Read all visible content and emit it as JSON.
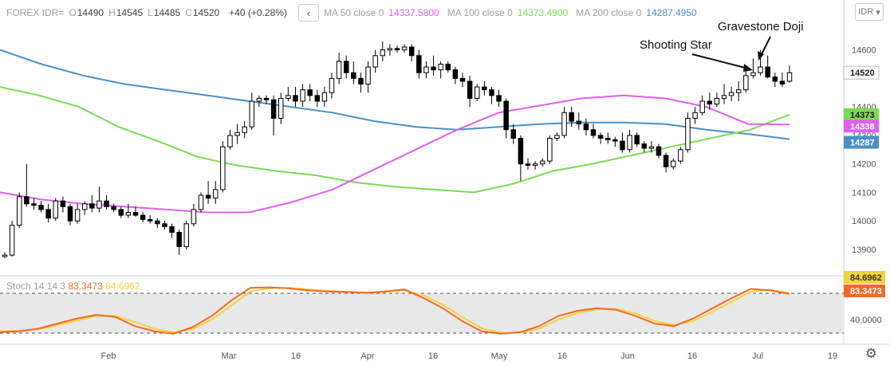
{
  "header": {
    "symbol": "FOREX IDR=",
    "ohlc": [
      {
        "k": "O",
        "v": "14490"
      },
      {
        "k": "H",
        "v": "14545"
      },
      {
        "k": "L",
        "v": "14485"
      },
      {
        "k": "C",
        "v": "14520"
      }
    ],
    "change": "+40 (+0.28%)",
    "collapse_icon": "chevron-left-icon",
    "ma": [
      {
        "label": "MA 50 close 0",
        "value": "14337.5800",
        "color": "#e05ff0"
      },
      {
        "label": "MA 100 close 0",
        "value": "14373.4900",
        "color": "#7ed957"
      },
      {
        "label": "MA 200 close 0",
        "value": "14287.4950",
        "color": "#4a90c8"
      }
    ],
    "currency_button": "IDR"
  },
  "stoch": {
    "label": "Stoch 14 14 3",
    "k_value": "83.3473",
    "d_value": "84.6962",
    "k_color": "#f06a2a",
    "d_color": "#f4d23c",
    "axis_labels": [
      "84.6962",
      "83.3473",
      "40.0000"
    ]
  },
  "annotations": {
    "shooting_star": "Shooting Star",
    "gravestone_doji": "Gravestone Doji"
  },
  "settings_icon": "gear-icon",
  "chart_data": {
    "type": "candlestick",
    "y_axis": {
      "range": [
        13830,
        14680
      ],
      "ticks": [
        13900,
        14000,
        14100,
        14200,
        14300,
        14400,
        14520,
        14600
      ]
    },
    "x_ticks": [
      "Feb",
      "Mar",
      "16",
      "Apr",
      "16",
      "May",
      "16",
      "Jun",
      "16",
      "Jul",
      "16",
      "19"
    ],
    "price_tags": [
      {
        "text": "14520",
        "color": "#ffffff",
        "textColor": "#222222"
      },
      {
        "text": "14373",
        "color": "#7ed957",
        "textColor": "#222222"
      },
      {
        "text": "14338",
        "color": "#e05ff0",
        "textColor": "#ffffff"
      },
      {
        "text": "14287",
        "color": "#4a90c8",
        "textColor": "#ffffff"
      }
    ],
    "candles": [
      [
        13875,
        13890,
        13870,
        13880
      ],
      [
        13880,
        14000,
        13875,
        13985
      ],
      [
        13985,
        14100,
        13975,
        14085
      ],
      [
        14085,
        14200,
        14050,
        14060
      ],
      [
        14060,
        14080,
        14040,
        14055
      ],
      [
        14055,
        14070,
        14030,
        14040
      ],
      [
        14040,
        14060,
        13995,
        14010
      ],
      [
        14010,
        14080,
        14000,
        14070
      ],
      [
        14070,
        14085,
        14030,
        14050
      ],
      [
        14050,
        14060,
        13985,
        14000
      ],
      [
        14000,
        14060,
        13990,
        14040
      ],
      [
        14040,
        14070,
        14020,
        14060
      ],
      [
        14060,
        14090,
        14030,
        14045
      ],
      [
        14045,
        14120,
        14030,
        14070
      ],
      [
        14070,
        14090,
        14040,
        14050
      ],
      [
        14050,
        14060,
        14030,
        14040
      ],
      [
        14040,
        14050,
        14010,
        14020
      ],
      [
        14020,
        14060,
        14010,
        14030
      ],
      [
        14030,
        14050,
        14015,
        14020
      ],
      [
        14020,
        14030,
        13995,
        14005
      ],
      [
        14005,
        14020,
        13990,
        14000
      ],
      [
        14000,
        14010,
        13975,
        13990
      ],
      [
        13990,
        14000,
        13970,
        13980
      ],
      [
        13980,
        13990,
        13940,
        13960
      ],
      [
        13960,
        13970,
        13880,
        13910
      ],
      [
        13910,
        14000,
        13900,
        13990
      ],
      [
        13990,
        14060,
        13980,
        14040
      ],
      [
        14040,
        14100,
        14030,
        14090
      ],
      [
        14090,
        14140,
        14060,
        14080
      ],
      [
        14080,
        14140,
        14060,
        14110
      ],
      [
        14110,
        14280,
        14100,
        14260
      ],
      [
        14260,
        14320,
        14250,
        14300
      ],
      [
        14300,
        14340,
        14270,
        14310
      ],
      [
        14310,
        14350,
        14290,
        14330
      ],
      [
        14330,
        14450,
        14320,
        14420
      ],
      [
        14420,
        14440,
        14400,
        14430
      ],
      [
        14430,
        14440,
        14410,
        14425
      ],
      [
        14425,
        14440,
        14300,
        14360
      ],
      [
        14360,
        14450,
        14340,
        14430
      ],
      [
        14430,
        14470,
        14420,
        14440
      ],
      [
        14440,
        14470,
        14400,
        14420
      ],
      [
        14420,
        14480,
        14400,
        14460
      ],
      [
        14460,
        14480,
        14420,
        14440
      ],
      [
        14440,
        14460,
        14400,
        14420
      ],
      [
        14420,
        14470,
        14400,
        14450
      ],
      [
        14450,
        14520,
        14430,
        14500
      ],
      [
        14500,
        14590,
        14480,
        14560
      ],
      [
        14560,
        14580,
        14500,
        14520
      ],
      [
        14520,
        14560,
        14480,
        14500
      ],
      [
        14500,
        14520,
        14450,
        14480
      ],
      [
        14480,
        14560,
        14450,
        14540
      ],
      [
        14540,
        14600,
        14520,
        14580
      ],
      [
        14580,
        14630,
        14560,
        14600
      ],
      [
        14600,
        14620,
        14580,
        14605
      ],
      [
        14605,
        14615,
        14590,
        14600
      ],
      [
        14600,
        14620,
        14590,
        14610
      ],
      [
        14610,
        14620,
        14560,
        14580
      ],
      [
        14580,
        14600,
        14500,
        14520
      ],
      [
        14520,
        14560,
        14500,
        14540
      ],
      [
        14540,
        14580,
        14510,
        14530
      ],
      [
        14530,
        14560,
        14500,
        14550
      ],
      [
        14550,
        14560,
        14520,
        14530
      ],
      [
        14530,
        14540,
        14480,
        14500
      ],
      [
        14500,
        14520,
        14470,
        14490
      ],
      [
        14490,
        14510,
        14400,
        14430
      ],
      [
        14430,
        14480,
        14420,
        14470
      ],
      [
        14470,
        14490,
        14440,
        14460
      ],
      [
        14460,
        14470,
        14410,
        14440
      ],
      [
        14440,
        14460,
        14400,
        14420
      ],
      [
        14420,
        14430,
        14290,
        14320
      ],
      [
        14320,
        14340,
        14270,
        14290
      ],
      [
        14290,
        14300,
        14140,
        14200
      ],
      [
        14200,
        14220,
        14180,
        14195
      ],
      [
        14195,
        14210,
        14180,
        14200
      ],
      [
        14200,
        14220,
        14190,
        14210
      ],
      [
        14210,
        14300,
        14200,
        14290
      ],
      [
        14290,
        14310,
        14280,
        14300
      ],
      [
        14300,
        14400,
        14290,
        14380
      ],
      [
        14380,
        14400,
        14330,
        14350
      ],
      [
        14350,
        14380,
        14320,
        14340
      ],
      [
        14340,
        14360,
        14300,
        14320
      ],
      [
        14320,
        14340,
        14290,
        14300
      ],
      [
        14300,
        14310,
        14270,
        14290
      ],
      [
        14290,
        14310,
        14270,
        14285
      ],
      [
        14285,
        14295,
        14260,
        14280
      ],
      [
        14280,
        14310,
        14240,
        14250
      ],
      [
        14250,
        14320,
        14240,
        14300
      ],
      [
        14300,
        14310,
        14260,
        14270
      ],
      [
        14270,
        14280,
        14240,
        14255
      ],
      [
        14255,
        14280,
        14240,
        14260
      ],
      [
        14260,
        14270,
        14220,
        14230
      ],
      [
        14230,
        14240,
        14170,
        14190
      ],
      [
        14190,
        14220,
        14180,
        14210
      ],
      [
        14210,
        14260,
        14200,
        14250
      ],
      [
        14250,
        14380,
        14240,
        14360
      ],
      [
        14360,
        14400,
        14340,
        14380
      ],
      [
        14380,
        14440,
        14370,
        14420
      ],
      [
        14420,
        14450,
        14390,
        14410
      ],
      [
        14410,
        14450,
        14400,
        14430
      ],
      [
        14430,
        14480,
        14410,
        14440
      ],
      [
        14440,
        14470,
        14420,
        14450
      ],
      [
        14450,
        14490,
        14420,
        14460
      ],
      [
        14460,
        14530,
        14450,
        14510
      ],
      [
        14510,
        14570,
        14500,
        14520
      ],
      [
        14520,
        14600,
        14510,
        14540
      ],
      [
        14540,
        14580,
        14500,
        14505
      ],
      [
        14505,
        14520,
        14470,
        14490
      ],
      [
        14490,
        14520,
        14470,
        14480
      ],
      [
        14490,
        14545,
        14485,
        14520
      ]
    ],
    "ma50": [
      14100,
      14075,
      14060,
      14050,
      14040,
      14030,
      14030,
      14065,
      14110,
      14180,
      14250,
      14320,
      14380,
      14405,
      14430,
      14440,
      14430,
      14400,
      14340,
      14338
    ],
    "ma100": [
      14470,
      14440,
      14400,
      14330,
      14280,
      14225,
      14195,
      14175,
      14160,
      14135,
      14120,
      14110,
      14100,
      14130,
      14175,
      14200,
      14230,
      14260,
      14290,
      14320,
      14373
    ],
    "ma200": [
      14600,
      14550,
      14510,
      14480,
      14460,
      14440,
      14420,
      14400,
      14380,
      14350,
      14330,
      14320,
      14330,
      14340,
      14345,
      14345,
      14340,
      14320,
      14305,
      14287
    ],
    "stoch_k": [
      8,
      10,
      15,
      25,
      35,
      42,
      38,
      20,
      10,
      5,
      18,
      40,
      70,
      95,
      96,
      94,
      90,
      88,
      87,
      85,
      88,
      92,
      75,
      55,
      30,
      10,
      5,
      8,
      20,
      40,
      50,
      55,
      52,
      40,
      25,
      20,
      35,
      55,
      75,
      93,
      90,
      83.3473
    ],
    "stoch_d": [
      10,
      11,
      14,
      22,
      31,
      40,
      40,
      28,
      15,
      8,
      14,
      33,
      60,
      88,
      94,
      95,
      92,
      89,
      87,
      86,
      87,
      90,
      80,
      62,
      38,
      16,
      7,
      7,
      15,
      33,
      46,
      53,
      54,
      45,
      30,
      22,
      30,
      48,
      68,
      88,
      91,
      84.6962
    ]
  }
}
